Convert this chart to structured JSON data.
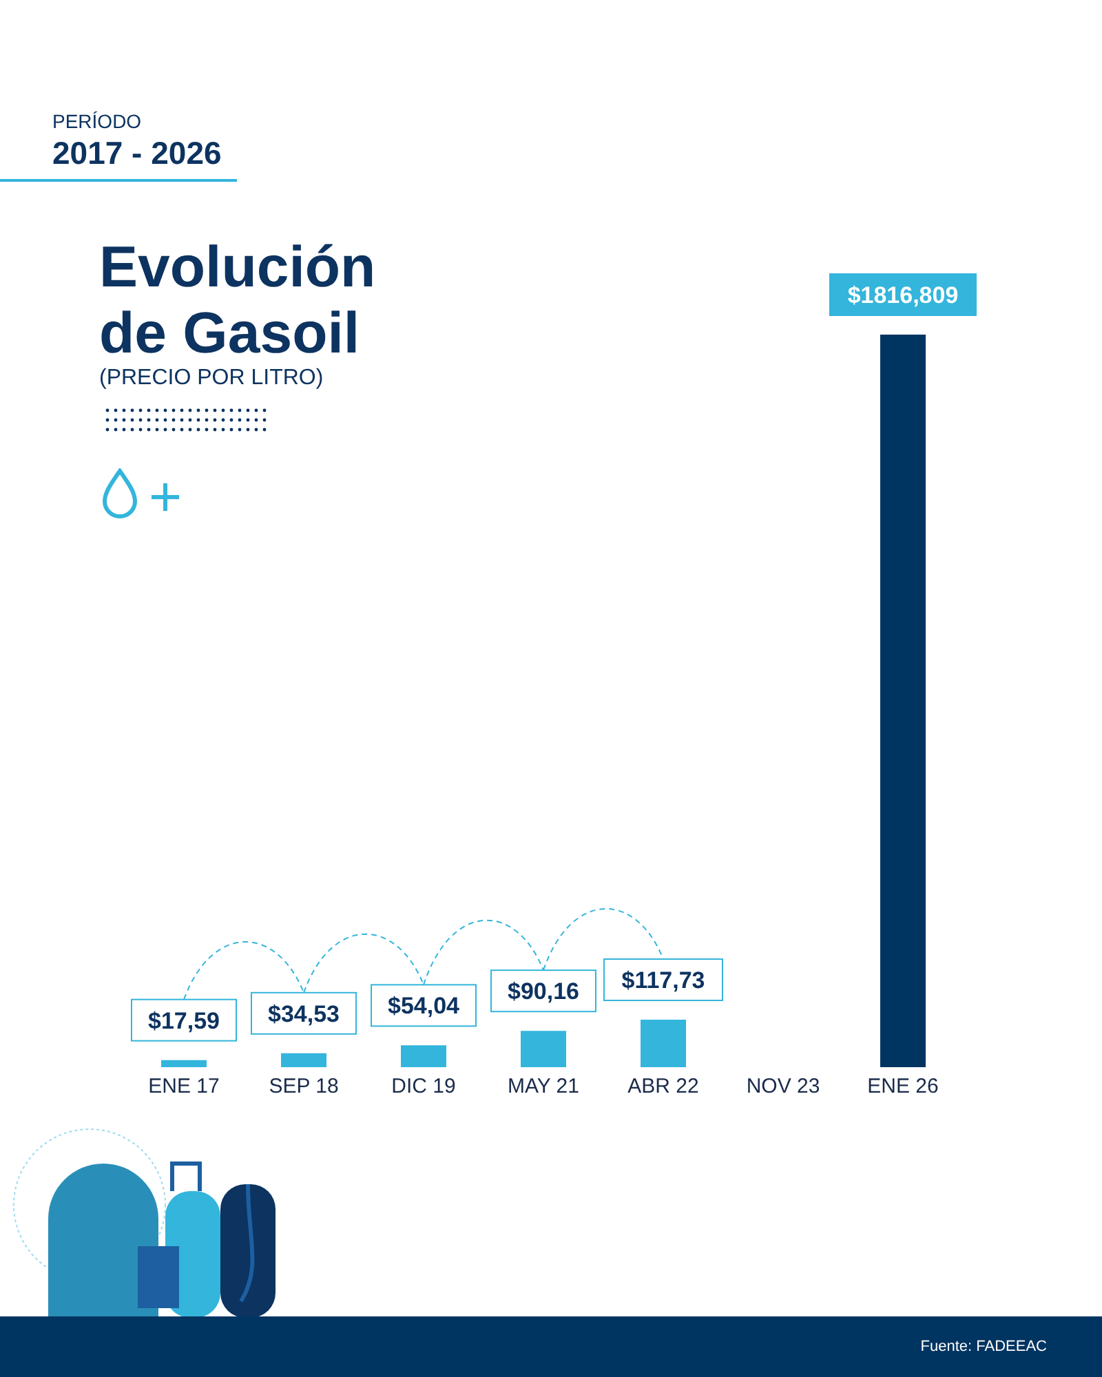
{
  "chart_data": {
    "type": "bar",
    "title": "Evolución\nde Gasoil",
    "subtitle": "(PRECIO POR LITRO)",
    "annotations": [
      "PERÍODO",
      "2017 - 2026",
      "Fuente: FADEEAC"
    ],
    "categories": [
      "ENE 17",
      "SEP 18",
      "DIC 19",
      "MAY 21",
      "ABR 22",
      "NOV 23",
      "ENE 26"
    ],
    "values": [
      17.59,
      34.53,
      54.04,
      90.16,
      117.73,
      null,
      1816.809
    ],
    "ylim": [
      0,
      1816.809
    ],
    "colors": [
      "#33b5dc",
      "#33b5dc",
      "#33b5dc",
      "#33b5dc",
      "#33b5dc",
      "#33b5dc",
      "#003461"
    ],
    "value_labels": [
      "$17,59",
      "$34,53",
      "$54,04",
      "$90,16",
      "$117,73",
      null,
      "$1816,809"
    ],
    "grid": false,
    "legend": false
  }
}
